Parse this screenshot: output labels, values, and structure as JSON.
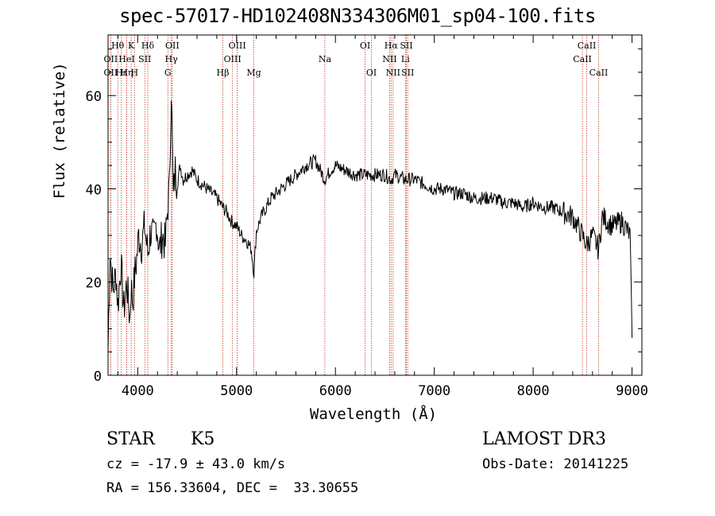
{
  "title": "spec-57017-HD102408N334306M01_sp04-100.fits",
  "info": {
    "object_class": "STAR",
    "subclass": "K5",
    "survey": "LAMOST DR3",
    "cz": "cz = -17.9 ± 43.0 km/s",
    "obs_date": "Obs-Date: 20141225",
    "coords": "RA = 156.33604, DEC =  33.30655"
  },
  "chart_data": {
    "type": "line",
    "title": "spec-57017-HD102408N334306M01_sp04-100.fits",
    "xlabel": "Wavelength (Å)",
    "ylabel": "Flux (relative)",
    "xlim": [
      3700,
      9100
    ],
    "ylim": [
      0,
      73
    ],
    "xticks": [
      4000,
      5000,
      6000,
      7000,
      8000,
      9000
    ],
    "yticks": [
      0,
      20,
      40,
      60
    ],
    "series": [
      {
        "name": "flux",
        "x": [
          3700,
          3720,
          3750,
          3780,
          3800,
          3830,
          3860,
          3890,
          3920,
          3933,
          3950,
          3968,
          3990,
          4010,
          4040,
          4070,
          4102,
          4130,
          4160,
          4190,
          4220,
          4250,
          4280,
          4300,
          4320,
          4340,
          4360,
          4380,
          4400,
          4430,
          4460,
          4500,
          4550,
          4600,
          4650,
          4700,
          4750,
          4800,
          4861,
          4900,
          4950,
          5000,
          5050,
          5100,
          5150,
          5175,
          5200,
          5250,
          5300,
          5350,
          5400,
          5450,
          5500,
          5600,
          5700,
          5800,
          5893,
          5950,
          6000,
          6100,
          6200,
          6300,
          6400,
          6500,
          6563,
          6600,
          6700,
          6800,
          6900,
          7000,
          7100,
          7200,
          7300,
          7400,
          7500,
          7600,
          7700,
          7800,
          7900,
          8000,
          8100,
          8200,
          8300,
          8400,
          8498,
          8542,
          8600,
          8662,
          8700,
          8800,
          8900,
          8980,
          9000
        ],
        "values": [
          5,
          27,
          18,
          22,
          15,
          24,
          14,
          20,
          12,
          19,
          16,
          21,
          25,
          30,
          28,
          32,
          26,
          31,
          29,
          33,
          27,
          30,
          28,
          35,
          40,
          62,
          38,
          44,
          41,
          45,
          42,
          43,
          44,
          42,
          41,
          40,
          39,
          38,
          36,
          35,
          33,
          32,
          30,
          29,
          27,
          22,
          31,
          34,
          36,
          38,
          39,
          40,
          41,
          43,
          45,
          46,
          42,
          44,
          45,
          44,
          43,
          43,
          43,
          43,
          42,
          43,
          42,
          42,
          41,
          40,
          40,
          39,
          39,
          38,
          38,
          38,
          37,
          37,
          36,
          37,
          36,
          36,
          35,
          34,
          30,
          28,
          30,
          27,
          34,
          32,
          33,
          30,
          8
        ]
      }
    ],
    "line_markers": [
      {
        "label": "OII",
        "wavelength": 3727,
        "row": 3
      },
      {
        "label": "Hθ",
        "wavelength": 3798,
        "row": 1
      },
      {
        "label": "OII",
        "wavelength": 3727,
        "row": 2
      },
      {
        "label": "Hε",
        "wavelength": 3835,
        "row": 3
      },
      {
        "label": "Hη",
        "wavelength": 3889,
        "row": 3
      },
      {
        "label": "HeI",
        "wavelength": 3889,
        "row": 2
      },
      {
        "label": "K",
        "wavelength": 3934,
        "row": 1
      },
      {
        "label": "H",
        "wavelength": 3968,
        "row": 3
      },
      {
        "label": "SII",
        "wavelength": 4072,
        "row": 2
      },
      {
        "label": "Hδ",
        "wavelength": 4102,
        "row": 1
      },
      {
        "label": "G",
        "wavelength": 4305,
        "row": 3
      },
      {
        "label": "OII",
        "wavelength": 4350,
        "row": 1
      },
      {
        "label": "Hγ",
        "wavelength": 4340,
        "row": 2
      },
      {
        "label": "Hβ",
        "wavelength": 4861,
        "row": 3
      },
      {
        "label": "OIII",
        "wavelength": 4959,
        "row": 2
      },
      {
        "label": "OIII",
        "wavelength": 5007,
        "row": 1
      },
      {
        "label": "Mg",
        "wavelength": 5175,
        "row": 3
      },
      {
        "label": "Na",
        "wavelength": 5893,
        "row": 2
      },
      {
        "label": "OI",
        "wavelength": 6300,
        "row": 1
      },
      {
        "label": "OI",
        "wavelength": 6364,
        "row": 3
      },
      {
        "label": "Hα",
        "wavelength": 6563,
        "row": 1
      },
      {
        "label": "NII",
        "wavelength": 6548,
        "row": 2
      },
      {
        "label": "NII",
        "wavelength": 6583,
        "row": 3
      },
      {
        "label": "SII",
        "wavelength": 6717,
        "row": 1
      },
      {
        "label": "Li",
        "wavelength": 6708,
        "row": 2
      },
      {
        "label": "SII",
        "wavelength": 6731,
        "row": 3
      },
      {
        "label": "CaII",
        "wavelength": 8498,
        "row": 2
      },
      {
        "label": "CaII",
        "wavelength": 8542,
        "row": 1
      },
      {
        "label": "CaII",
        "wavelength": 8662,
        "row": 3
      }
    ]
  }
}
